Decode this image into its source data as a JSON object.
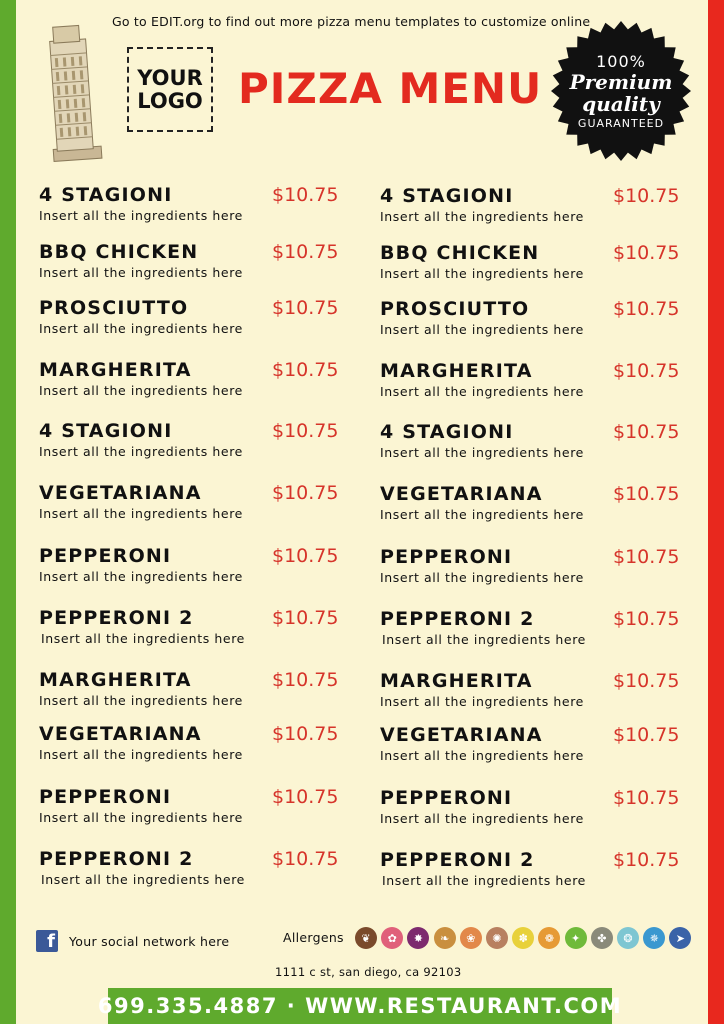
{
  "header": {
    "promo": "Go to EDIT.org to find out more pizza menu templates to customize online",
    "logo_text": "YOUR\nLOGO",
    "title": "PIZZA MENU",
    "badge": {
      "line1": "100%",
      "line2": "Premium",
      "line3": "quality",
      "line4": "GUARANTEED"
    }
  },
  "menu": {
    "left": [
      {
        "name": "4 STAGIONI",
        "desc": "Insert all the ingredients here",
        "price": "$10.75"
      },
      {
        "name": "BBQ CHICKEN",
        "desc": "Insert all the ingredients here",
        "price": "$10.75"
      },
      {
        "name": "PROSCIUTTO",
        "desc": "Insert all the ingredients here",
        "price": "$10.75"
      },
      {
        "name": "MARGHERITA",
        "desc": "Insert all the ingredients here",
        "price": "$10.75"
      },
      {
        "name": "4 STAGIONI",
        "desc": "Insert all the ingredients here",
        "price": "$10.75"
      },
      {
        "name": "VEGETARIANA",
        "desc": "Insert all the ingredients here",
        "price": "$10.75"
      },
      {
        "name": "PEPPERONI",
        "desc": "Insert all the ingredients here",
        "price": "$10.75"
      },
      {
        "name": "PEPPERONI 2",
        "desc": "Insert all the ingredients here",
        "price": "$10.75"
      },
      {
        "name": "MARGHERITA",
        "desc": "Insert all the ingredients here",
        "price": "$10.75"
      },
      {
        "name": "VEGETARIANA",
        "desc": "Insert all the ingredients here",
        "price": "$10.75"
      },
      {
        "name": "PEPPERONI",
        "desc": "Insert all the ingredients here",
        "price": "$10.75"
      },
      {
        "name": "PEPPERONI 2",
        "desc": "Insert all the ingredients here",
        "price": "$10.75"
      }
    ],
    "right": [
      {
        "name": "4 STAGIONI",
        "desc": "Insert all the ingredients here",
        "price": "$10.75"
      },
      {
        "name": "BBQ CHICKEN",
        "desc": "Insert all the ingredients here",
        "price": "$10.75"
      },
      {
        "name": "PROSCIUTTO",
        "desc": "Insert all the ingredients here",
        "price": "$10.75"
      },
      {
        "name": "MARGHERITA",
        "desc": "Insert all the ingredients here",
        "price": "$10.75"
      },
      {
        "name": "4 STAGIONI",
        "desc": "Insert all the ingredients here",
        "price": "$10.75"
      },
      {
        "name": "VEGETARIANA",
        "desc": "Insert all the ingredients here",
        "price": "$10.75"
      },
      {
        "name": "PEPPERONI",
        "desc": "Insert all the ingredients here",
        "price": "$10.75"
      },
      {
        "name": "PEPPERONI 2",
        "desc": "Insert all the ingredients here",
        "price": "$10.75"
      },
      {
        "name": "MARGHERITA",
        "desc": "Insert all the ingredients here",
        "price": "$10.75"
      },
      {
        "name": "VEGETARIANA",
        "desc": "Insert all the ingredients here",
        "price": "$10.75"
      },
      {
        "name": "PEPPERONI",
        "desc": "Insert all the ingredients here",
        "price": "$10.75"
      },
      {
        "name": "PEPPERONI 2",
        "desc": "Insert all the ingredients here",
        "price": "$10.75"
      }
    ]
  },
  "footer": {
    "social_text": "Your social network here",
    "allergens_label": "Allergens",
    "allergen_icons": [
      {
        "name": "celery-allergen-icon",
        "color": "#7a4a2b"
      },
      {
        "name": "crustaceans-allergen-icon",
        "color": "#e0607a"
      },
      {
        "name": "egg-allergen-icon",
        "color": "#7d2a6e"
      },
      {
        "name": "gluten-allergen-icon",
        "color": "#c98f3e"
      },
      {
        "name": "wheat-allergen-icon",
        "color": "#e2884a"
      },
      {
        "name": "peanut-allergen-icon",
        "color": "#b88060"
      },
      {
        "name": "lupin-allergen-icon",
        "color": "#e8d13a"
      },
      {
        "name": "mustard-allergen-icon",
        "color": "#e69a35"
      },
      {
        "name": "sesame-allergen-icon",
        "color": "#6fba3a"
      },
      {
        "name": "nuts-allergen-icon",
        "color": "#8a8a7a"
      },
      {
        "name": "molluscs-allergen-icon",
        "color": "#7ec6d2"
      },
      {
        "name": "crab-allergen-icon",
        "color": "#3a98d0"
      },
      {
        "name": "fish-allergen-icon",
        "color": "#3a63a8"
      }
    ],
    "address": "1111 c st, san diego, ca 92103",
    "contact_bar": "699.335.4887 · WWW.RESTAURANT.COM"
  },
  "colors": {
    "accent_red": "#e32a1f",
    "accent_green": "#5faa2d",
    "background": "#fbf5d3",
    "price": "#d6342a"
  }
}
